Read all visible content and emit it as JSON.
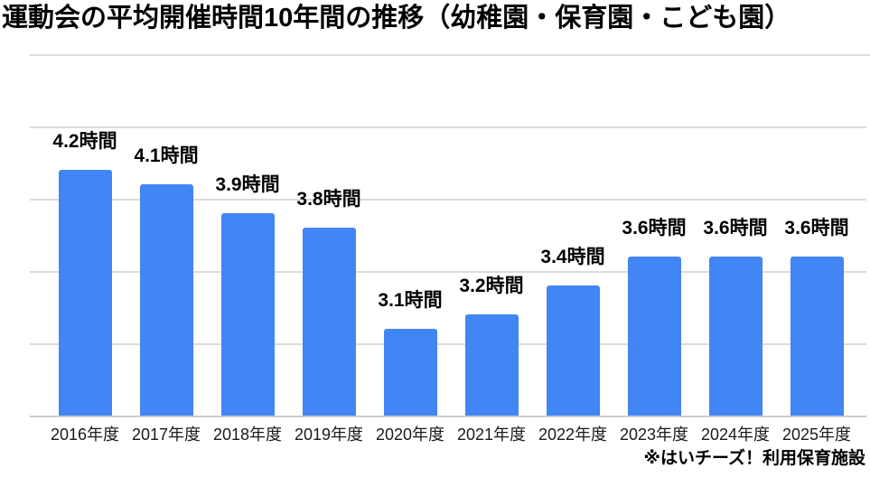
{
  "title": "運動会の平均開催時間10年間の推移（幼稚園・保育園・こども園）",
  "footer": {
    "note": "※はいチーズ！利用保育施設"
  },
  "colors": {
    "bar": "#4285F4",
    "gridline": "#dcdcdc",
    "baseline": "#cccccc",
    "title_rule": "#dcdcdc"
  },
  "chart_data": {
    "type": "bar",
    "title": "運動会の平均開催時間10年間の推移（幼稚園・保育園・こども園）",
    "categories": [
      "2016年度",
      "2017年度",
      "2018年度",
      "2019年度",
      "2020年度",
      "2021年度",
      "2022年度",
      "2023年度",
      "2024年度",
      "2025年度"
    ],
    "values": [
      4.2,
      4.1,
      3.9,
      3.8,
      3.1,
      3.2,
      3.4,
      3.6,
      3.6,
      3.6
    ],
    "labels": [
      "4.2時間",
      "4.1時間",
      "3.9時間",
      "3.8時間",
      "3.1時間",
      "3.2時間",
      "3.4時間",
      "3.6時間",
      "3.6時間",
      "3.6時間"
    ],
    "unit": "時間",
    "xlabel": "",
    "ylabel": "",
    "ylim": [
      2.5,
      4.5
    ],
    "gridline_step": 0.5,
    "grid": true,
    "legend_position": "none",
    "y_axis_labels_visible": false,
    "source_note": "※はいチーズ！利用保育施設"
  }
}
